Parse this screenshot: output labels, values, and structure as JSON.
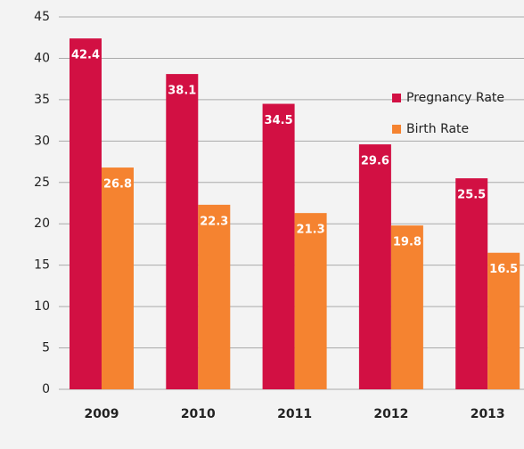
{
  "chart_data": {
    "type": "bar",
    "categories": [
      "2009",
      "2010",
      "2011",
      "2012",
      "2013"
    ],
    "series": [
      {
        "name": "Pregnancy Rate",
        "color": "#d21043",
        "values": [
          42.4,
          38.1,
          34.5,
          29.6,
          25.5
        ]
      },
      {
        "name": "Birth Rate",
        "color": "#f58330",
        "values": [
          26.8,
          22.3,
          21.3,
          19.8,
          16.5
        ]
      }
    ],
    "ylim": [
      0,
      45
    ],
    "yticks": [
      0,
      5,
      10,
      15,
      20,
      25,
      30,
      35,
      40,
      45
    ],
    "grid": true,
    "legend": "right"
  }
}
